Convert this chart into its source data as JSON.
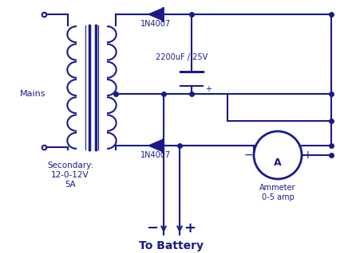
{
  "bg_color": "#ffffff",
  "line_color": "#1a1a8c",
  "text_color": "#1a1a8c",
  "title": "To Battery",
  "secondary_label": "Secondary:\n12-0-12V\n5A",
  "mains_label": "Mains",
  "diode1_label": "1N4007",
  "diode2_label": "1N4007",
  "cap_label": "2200uF / 25V",
  "ammeter_label": "Ammeter\n0-5 amp",
  "ammeter_A": "A"
}
